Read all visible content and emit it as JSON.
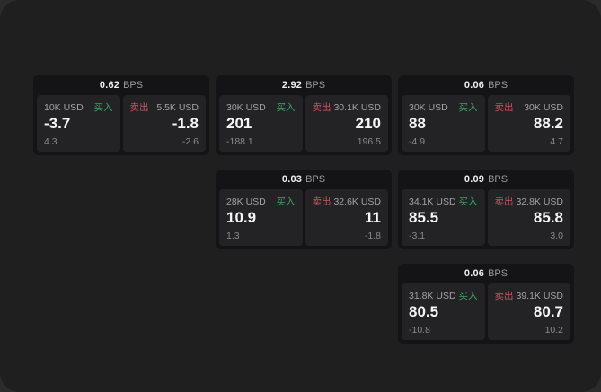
{
  "labels": {
    "bps": "BPS",
    "buy": "买入",
    "sell": "卖出"
  },
  "colors": {
    "page-bg": "#2b2b2b",
    "window-bg": "#1f1f1f",
    "card-bg": "#141416",
    "panel-bg": "#232326",
    "buy": "#3da065",
    "sell": "#c85560"
  },
  "cards": [
    {
      "spread": "0.62",
      "buy": {
        "amount": "10K USD",
        "price": "-3.7",
        "sub": "4.3"
      },
      "sell": {
        "amount": "5.5K USD",
        "price": "-1.8",
        "sub": "-2.6"
      }
    },
    {
      "spread": "2.92",
      "buy": {
        "amount": "30K USD",
        "price": "201",
        "sub": "-188.1"
      },
      "sell": {
        "amount": "30.1K USD",
        "price": "210",
        "sub": "196.5"
      }
    },
    {
      "spread": "0.06",
      "buy": {
        "amount": "30K USD",
        "price": "88",
        "sub": "-4.9"
      },
      "sell": {
        "amount": "30K USD",
        "price": "88.2",
        "sub": "4.7"
      }
    },
    {
      "spread": "0.03",
      "buy": {
        "amount": "28K USD",
        "price": "10.9",
        "sub": "1.3"
      },
      "sell": {
        "amount": "32.6K USD",
        "price": "11",
        "sub": "-1.8"
      }
    },
    {
      "spread": "0.09",
      "buy": {
        "amount": "34.1K USD",
        "price": "85.5",
        "sub": "-3.1"
      },
      "sell": {
        "amount": "32.8K USD",
        "price": "85.8",
        "sub": "3.0"
      }
    },
    {
      "spread": "0.06",
      "buy": {
        "amount": "31.8K USD",
        "price": "80.5",
        "sub": "-10.8"
      },
      "sell": {
        "amount": "39.1K USD",
        "price": "80.7",
        "sub": "10.2"
      }
    }
  ]
}
